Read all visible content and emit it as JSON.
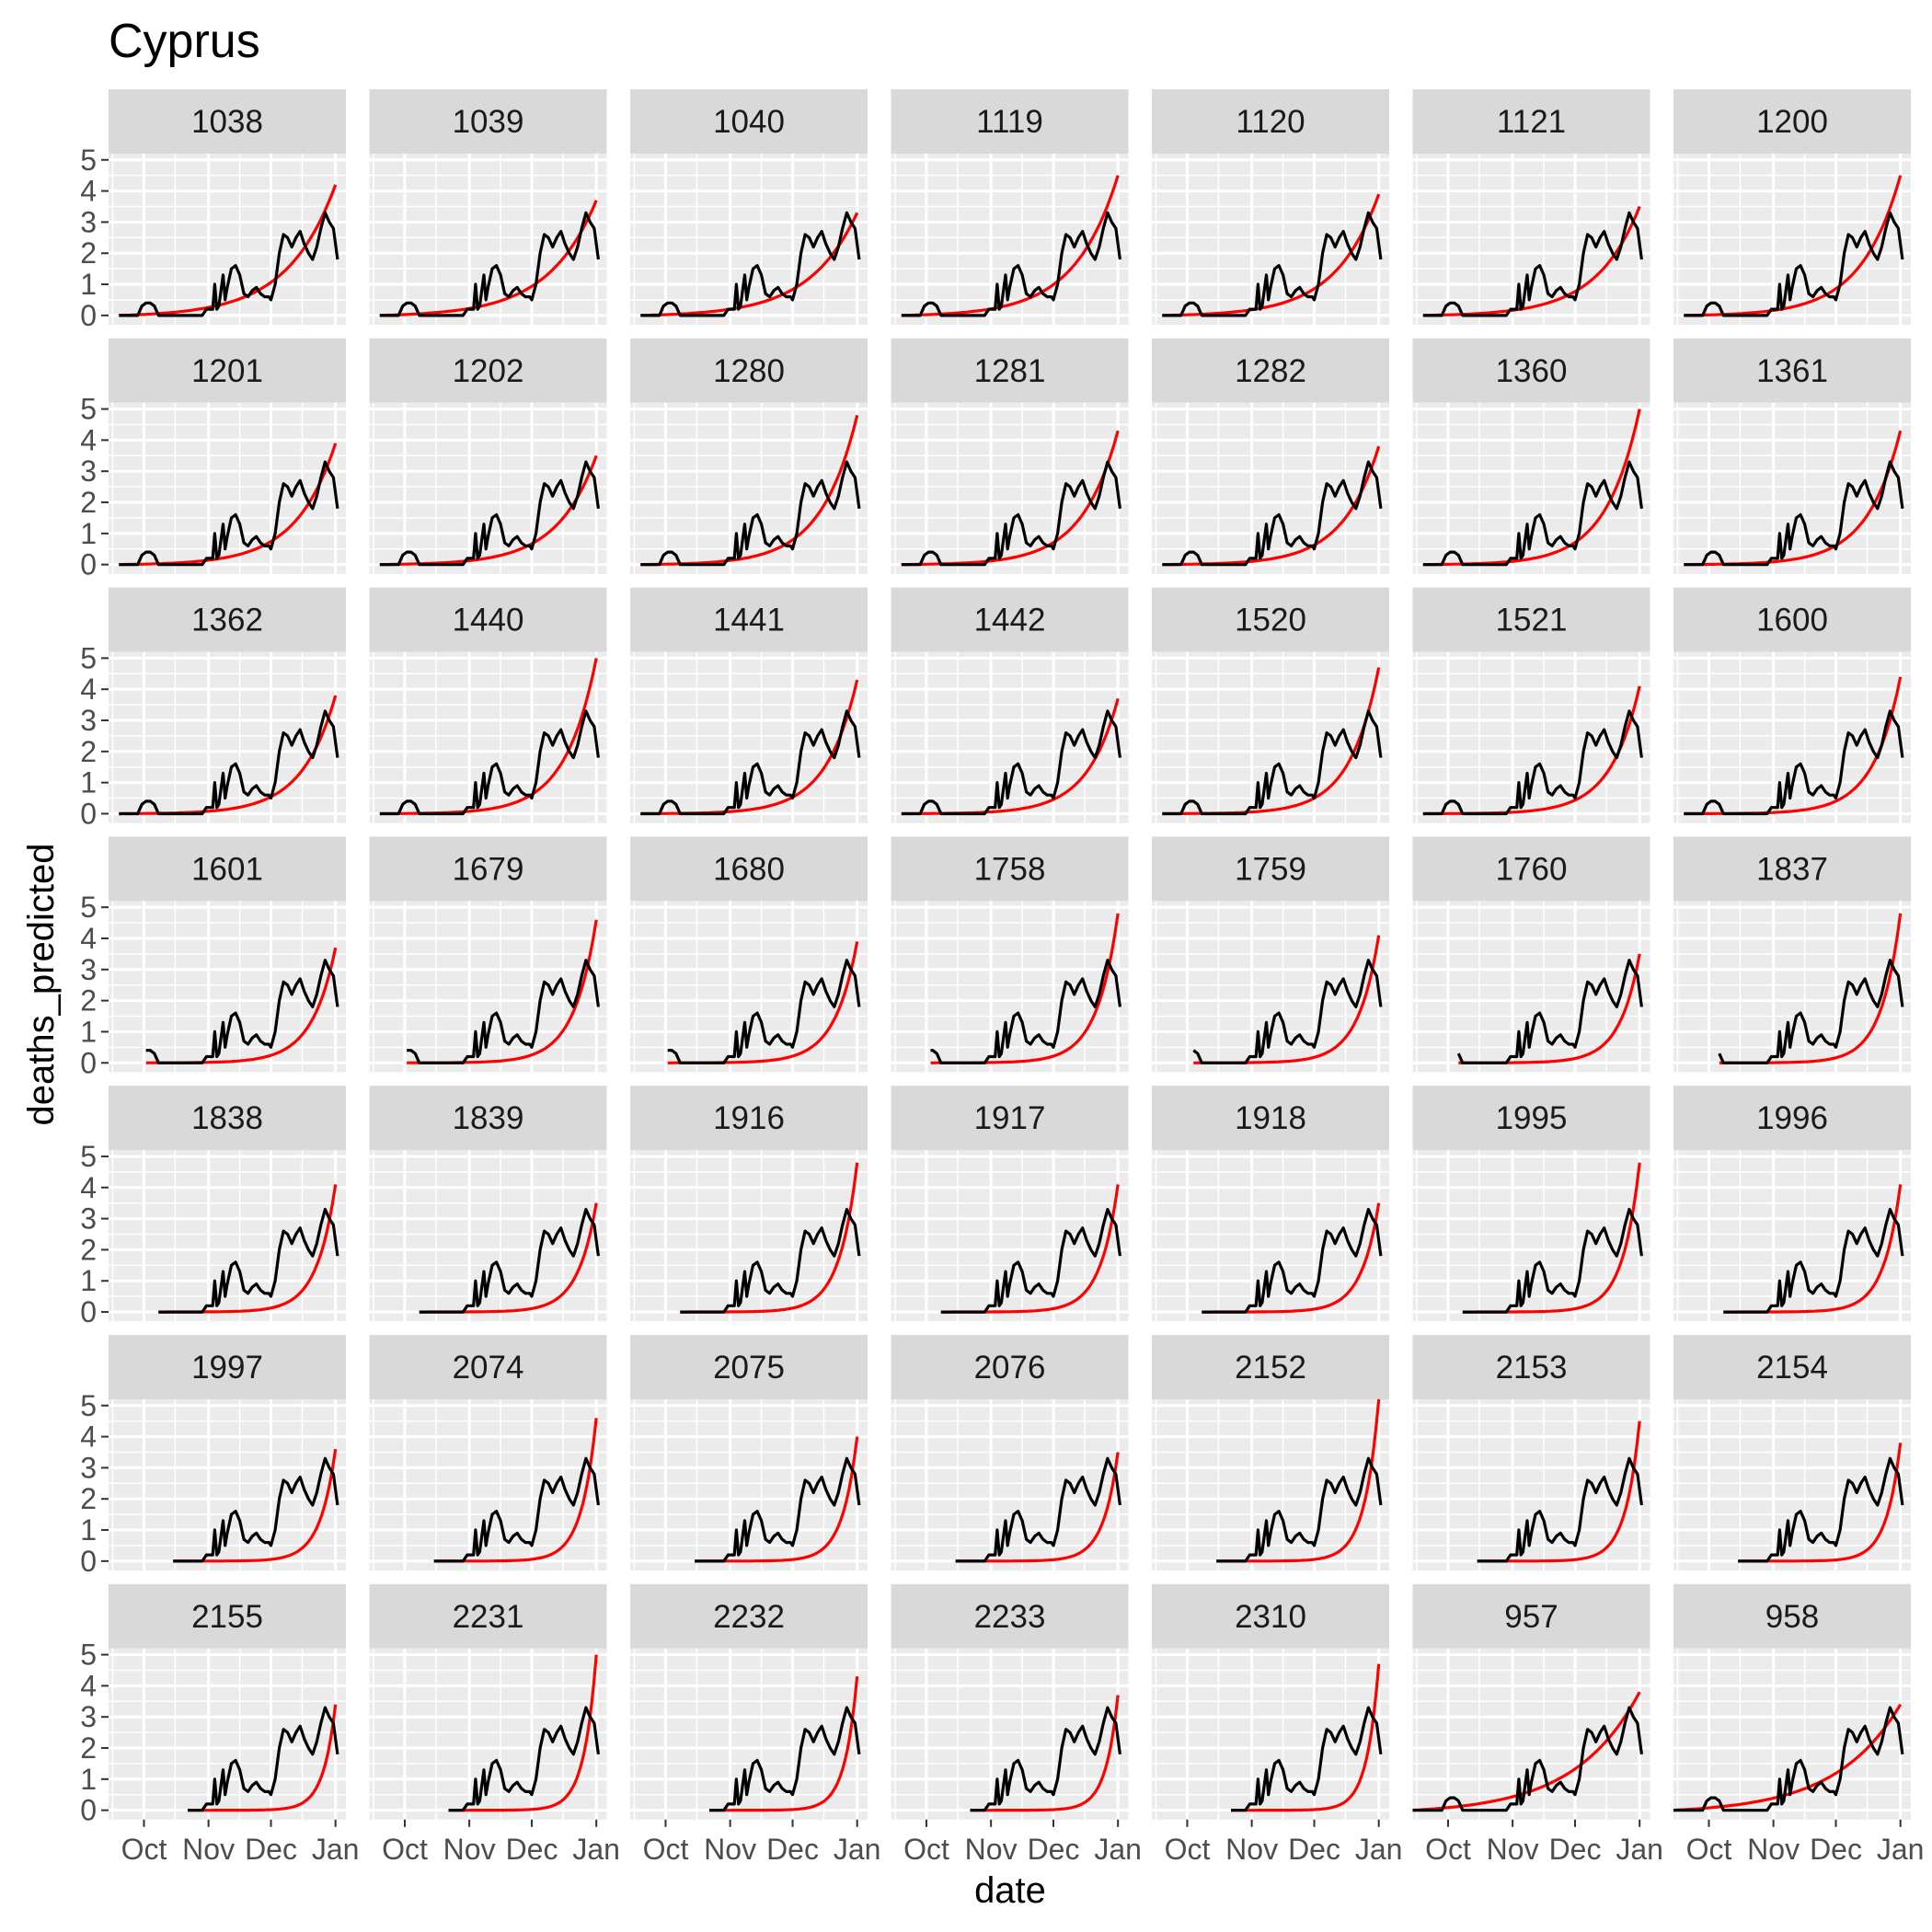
{
  "chart_data": {
    "type": "line",
    "title": "Cyprus",
    "xlabel": "date",
    "ylabel": "deaths_predicted",
    "x_axis": {
      "kind": "date",
      "range": [
        "2020-09-14",
        "2021-01-06"
      ],
      "tick_dates": [
        "2020-10-01",
        "2020-11-01",
        "2020-12-01",
        "2021-01-01"
      ],
      "tick_labels": [
        "Oct",
        "Nov",
        "Dec",
        "Jan"
      ]
    },
    "y_axis": {
      "range": [
        -0.3,
        5.2
      ],
      "ticks": [
        0,
        1,
        2,
        3,
        4,
        5
      ],
      "tick_labels": [
        "0",
        "1",
        "2",
        "3",
        "4",
        "5"
      ]
    },
    "grid": true,
    "facet_layout": "7 x 7 grid",
    "colors": {
      "observed": "#000000",
      "predicted": "#ff0000",
      "panel_background": "#ebebeb",
      "strip_background": "#d9d9d9",
      "grid": "#ffffff"
    },
    "observed_series": {
      "color": "black",
      "x": [
        "2020-09-19",
        "2020-09-24",
        "2020-09-28",
        "2020-09-30",
        "2020-10-02",
        "2020-10-04",
        "2020-10-06",
        "2020-10-08",
        "2020-10-15",
        "2020-10-22",
        "2020-10-29",
        "2020-10-31",
        "2020-11-01",
        "2020-11-03",
        "2020-11-04",
        "2020-11-05",
        "2020-11-06",
        "2020-11-08",
        "2020-11-09",
        "2020-11-10",
        "2020-11-12",
        "2020-11-14",
        "2020-11-16",
        "2020-11-18",
        "2020-11-20",
        "2020-11-22",
        "2020-11-24",
        "2020-11-26",
        "2020-11-28",
        "2020-11-30",
        "2020-12-01",
        "2020-12-03",
        "2020-12-05",
        "2020-12-07",
        "2020-12-09",
        "2020-12-11",
        "2020-12-13",
        "2020-12-15",
        "2020-12-17",
        "2020-12-19",
        "2020-12-21",
        "2020-12-23",
        "2020-12-25",
        "2020-12-27",
        "2020-12-29",
        "2020-12-31",
        "2021-01-02"
      ],
      "y": [
        0,
        0,
        0,
        0.3,
        0.4,
        0.4,
        0.3,
        0,
        0,
        0,
        0,
        0.2,
        0.2,
        0.2,
        1.0,
        0.2,
        0.3,
        1.3,
        0.5,
        0.9,
        1.5,
        1.6,
        1.3,
        0.7,
        0.6,
        0.8,
        0.9,
        0.7,
        0.6,
        0.6,
        0.5,
        1.0,
        2.0,
        2.6,
        2.5,
        2.2,
        2.5,
        2.7,
        2.3,
        2.0,
        1.8,
        2.2,
        2.8,
        3.3,
        3.0,
        2.8,
        1.8
      ]
    },
    "predicted_end_date": "2021-01-01",
    "panels": [
      {
        "label": "1038",
        "start": "2020-09-19",
        "predicted_end_value": 4.2,
        "predicted_shape": 4.5
      },
      {
        "label": "1039",
        "start": "2020-09-19",
        "predicted_end_value": 3.7,
        "predicted_shape": 4.5
      },
      {
        "label": "1040",
        "start": "2020-09-19",
        "predicted_end_value": 3.3,
        "predicted_shape": 4.5
      },
      {
        "label": "1119",
        "start": "2020-09-19",
        "predicted_end_value": 4.5,
        "predicted_shape": 5
      },
      {
        "label": "1120",
        "start": "2020-09-19",
        "predicted_end_value": 3.9,
        "predicted_shape": 5
      },
      {
        "label": "1121",
        "start": "2020-09-19",
        "predicted_end_value": 3.5,
        "predicted_shape": 5
      },
      {
        "label": "1200",
        "start": "2020-09-19",
        "predicted_end_value": 4.5,
        "predicted_shape": 5.5
      },
      {
        "label": "1201",
        "start": "2020-09-19",
        "predicted_end_value": 3.9,
        "predicted_shape": 5.5
      },
      {
        "label": "1202",
        "start": "2020-09-19",
        "predicted_end_value": 3.5,
        "predicted_shape": 5.5
      },
      {
        "label": "1280",
        "start": "2020-09-19",
        "predicted_end_value": 4.8,
        "predicted_shape": 6
      },
      {
        "label": "1281",
        "start": "2020-09-19",
        "predicted_end_value": 4.3,
        "predicted_shape": 6
      },
      {
        "label": "1282",
        "start": "2020-09-19",
        "predicted_end_value": 3.8,
        "predicted_shape": 6
      },
      {
        "label": "1360",
        "start": "2020-09-19",
        "predicted_end_value": 5.0,
        "predicted_shape": 6.5
      },
      {
        "label": "1361",
        "start": "2020-09-19",
        "predicted_end_value": 4.3,
        "predicted_shape": 6.5
      },
      {
        "label": "1362",
        "start": "2020-09-19",
        "predicted_end_value": 3.8,
        "predicted_shape": 6.5
      },
      {
        "label": "1440",
        "start": "2020-09-19",
        "predicted_end_value": 5.0,
        "predicted_shape": 7
      },
      {
        "label": "1441",
        "start": "2020-09-19",
        "predicted_end_value": 4.3,
        "predicted_shape": 7
      },
      {
        "label": "1442",
        "start": "2020-09-19",
        "predicted_end_value": 3.7,
        "predicted_shape": 7
      },
      {
        "label": "1520",
        "start": "2020-09-19",
        "predicted_end_value": 4.7,
        "predicted_shape": 7.5
      },
      {
        "label": "1521",
        "start": "2020-09-19",
        "predicted_end_value": 4.1,
        "predicted_shape": 7.5
      },
      {
        "label": "1600",
        "start": "2020-09-19",
        "predicted_end_value": 4.4,
        "predicted_shape": 8
      },
      {
        "label": "1601",
        "start": "2020-10-02",
        "predicted_end_value": 3.7,
        "predicted_shape": 8
      },
      {
        "label": "1679",
        "start": "2020-10-02",
        "predicted_end_value": 4.6,
        "predicted_shape": 8.5
      },
      {
        "label": "1680",
        "start": "2020-10-02",
        "predicted_end_value": 3.9,
        "predicted_shape": 8.5
      },
      {
        "label": "1758",
        "start": "2020-10-03",
        "predicted_end_value": 4.8,
        "predicted_shape": 9
      },
      {
        "label": "1759",
        "start": "2020-10-04",
        "predicted_end_value": 4.1,
        "predicted_shape": 9
      },
      {
        "label": "1760",
        "start": "2020-10-06",
        "predicted_end_value": 3.5,
        "predicted_shape": 9
      },
      {
        "label": "1837",
        "start": "2020-10-06",
        "predicted_end_value": 4.8,
        "predicted_shape": 9.5
      },
      {
        "label": "1838",
        "start": "2020-10-08",
        "predicted_end_value": 4.1,
        "predicted_shape": 9.5
      },
      {
        "label": "1839",
        "start": "2020-10-08",
        "predicted_end_value": 3.5,
        "predicted_shape": 9.5
      },
      {
        "label": "1916",
        "start": "2020-10-08",
        "predicted_end_value": 4.8,
        "predicted_shape": 10
      },
      {
        "label": "1917",
        "start": "2020-10-08",
        "predicted_end_value": 4.1,
        "predicted_shape": 10
      },
      {
        "label": "1918",
        "start": "2020-10-08",
        "predicted_end_value": 3.5,
        "predicted_shape": 10
      },
      {
        "label": "1995",
        "start": "2020-10-08",
        "predicted_end_value": 4.8,
        "predicted_shape": 10.5
      },
      {
        "label": "1996",
        "start": "2020-10-08",
        "predicted_end_value": 4.1,
        "predicted_shape": 10.5
      },
      {
        "label": "1997",
        "start": "2020-10-15",
        "predicted_end_value": 3.6,
        "predicted_shape": 10.5
      },
      {
        "label": "2074",
        "start": "2020-10-15",
        "predicted_end_value": 4.6,
        "predicted_shape": 11
      },
      {
        "label": "2075",
        "start": "2020-10-15",
        "predicted_end_value": 4.0,
        "predicted_shape": 11
      },
      {
        "label": "2076",
        "start": "2020-10-15",
        "predicted_end_value": 3.5,
        "predicted_shape": 11
      },
      {
        "label": "2152",
        "start": "2020-10-15",
        "predicted_end_value": 5.2,
        "predicted_shape": 11.5
      },
      {
        "label": "2153",
        "start": "2020-10-15",
        "predicted_end_value": 4.5,
        "predicted_shape": 11.5
      },
      {
        "label": "2154",
        "start": "2020-10-15",
        "predicted_end_value": 3.8,
        "predicted_shape": 11.5
      },
      {
        "label": "2155",
        "start": "2020-10-22",
        "predicted_end_value": 3.4,
        "predicted_shape": 12
      },
      {
        "label": "2231",
        "start": "2020-10-22",
        "predicted_end_value": 5.0,
        "predicted_shape": 12
      },
      {
        "label": "2232",
        "start": "2020-10-22",
        "predicted_end_value": 4.3,
        "predicted_shape": 12
      },
      {
        "label": "2233",
        "start": "2020-10-22",
        "predicted_end_value": 3.7,
        "predicted_shape": 12
      },
      {
        "label": "2310",
        "start": "2020-10-22",
        "predicted_end_value": 4.7,
        "predicted_shape": 12.5
      },
      {
        "label": "957",
        "start": "2020-09-14",
        "predicted_end_value": 3.8,
        "predicted_shape": 3.5
      },
      {
        "label": "958",
        "start": "2020-09-14",
        "predicted_end_value": 3.4,
        "predicted_shape": 3.5
      }
    ]
  }
}
